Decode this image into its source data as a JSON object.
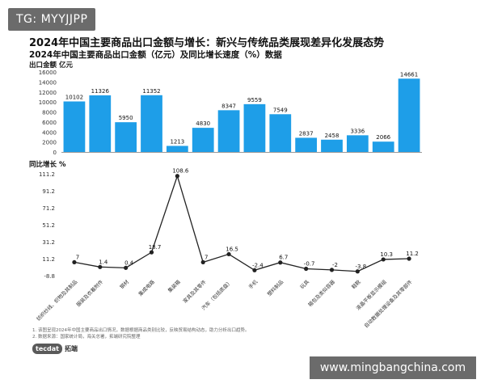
{
  "watermark_top": "TG: MYYJJPP",
  "watermark_bottom": "www.mingbangchina.com",
  "title": "2024年中国主要商品出口金额与增长：新兴与传统品类展现差异化发展态势",
  "subtitle": "2024年中国主要商品出口金额（亿元）及同比增长速度（%）数据",
  "colors": {
    "bar": "#1e9ee8",
    "line": "#222222",
    "axis": "#999999"
  },
  "chart_data": [
    {
      "type": "bar",
      "ylabel": "出口金额  亿元",
      "ylim": [
        0,
        16000
      ],
      "yticks": [
        0,
        2000,
        4000,
        6000,
        8000,
        10000,
        12000,
        14000,
        16000
      ],
      "values": [
        10102,
        11326,
        5950,
        11352,
        1213,
        4830,
        8347,
        9559,
        7549,
        2837,
        2458,
        3336,
        2066,
        14661
      ],
      "data_labels": [
        "10102",
        "11326",
        "5950",
        "11352",
        "1213",
        "4830",
        "8347",
        "9559",
        "7549",
        "2837",
        "2458",
        "3336",
        "2066",
        "14661"
      ]
    },
    {
      "type": "line",
      "ylabel": "同比增长  %",
      "ylim": [
        -8.8,
        111.2
      ],
      "yticks": [
        -8.8,
        11.2,
        31.2,
        51.2,
        71.2,
        91.2,
        111.2
      ],
      "categories": [
        "纺织纱线、织物及其制品",
        "服装及衣着附件",
        "钢材",
        "集成电路",
        "集装箱",
        "家具及其零件",
        "汽车（包括底盘）",
        "手机",
        "塑料制品",
        "玩具",
        "箱包及类似容器",
        "鞋靴",
        "液晶平板显示模组",
        "自动数据处理设备及其零部件"
      ],
      "values": [
        7,
        1.4,
        0.4,
        18.7,
        108.6,
        7,
        16.5,
        -2.4,
        6.7,
        -0.7,
        -2,
        -3.8,
        10.3,
        11.2
      ],
      "data_labels": [
        "7",
        "1.4",
        "0.4",
        "18.7",
        "108.6",
        "7",
        "16.5",
        "-2.4",
        "6.7",
        "-0.7",
        "-2",
        "-3.8",
        "10.3",
        "11.2"
      ]
    }
  ],
  "notes": [
    "1. 该图呈现2024年中国主要商品出口情况，数据根据商品类别比较，反映贸易结构动态，助力分析出口趋势。",
    "2. 数据来源：国家统计局，海关总署，拓端研究院整理"
  ],
  "logo": {
    "badge": "tecdat",
    "text": "拓端"
  }
}
